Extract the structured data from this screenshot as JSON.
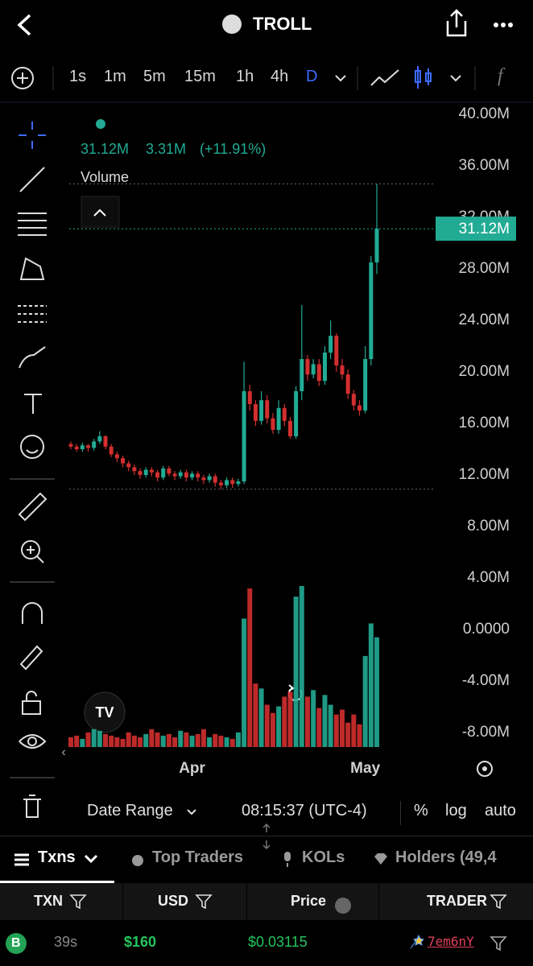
{
  "header": {
    "title": "TROLL"
  },
  "timeframes": [
    "1s",
    "1m",
    "5m",
    "15m",
    "1h",
    "4h",
    "D"
  ],
  "chart_data": {
    "type": "candlestick",
    "indicator": "Volume",
    "legend": {
      "close": "31.12M",
      "change": "3.31M",
      "change_pct": "(+11.91%)"
    },
    "categories": [
      null,
      null,
      null,
      null,
      null,
      null,
      null,
      null,
      null,
      null,
      null,
      null,
      null,
      null,
      null,
      null,
      null,
      null,
      null,
      null,
      null,
      "Apr",
      null,
      null,
      null,
      null,
      null,
      null,
      null,
      null,
      null,
      null,
      null,
      null,
      null,
      null,
      null,
      null,
      null,
      null,
      null,
      null,
      null,
      null,
      null,
      null,
      null,
      null,
      null,
      null,
      null,
      "May",
      null,
      null
    ],
    "open": [
      14.4,
      14.2,
      14.0,
      14.3,
      14.1,
      14.6,
      15.0,
      14.2,
      13.6,
      13.3,
      12.9,
      12.6,
      12.3,
      12.0,
      12.4,
      12.2,
      11.8,
      12.5,
      12.1,
      11.9,
      12.2,
      11.8,
      12.1,
      11.8,
      11.6,
      11.9,
      11.4,
      11.2,
      11.6,
      11.3,
      11.5,
      18.5,
      17.5,
      16.2,
      17.8,
      16.4,
      15.5,
      17.2,
      16.2,
      15.0,
      18.5,
      21.0,
      19.8,
      20.6,
      19.3,
      21.5,
      22.8,
      20.5,
      19.8,
      18.3,
      17.4,
      17.0,
      21.0,
      28.5
    ],
    "high": [
      14.6,
      14.4,
      14.5,
      14.4,
      14.8,
      15.4,
      15.1,
      14.4,
      13.8,
      13.5,
      13.1,
      12.8,
      12.5,
      12.6,
      12.6,
      12.4,
      12.7,
      12.7,
      12.3,
      12.4,
      12.4,
      12.3,
      12.3,
      12.0,
      12.1,
      12.1,
      11.6,
      11.8,
      11.8,
      11.7,
      20.8,
      19.0,
      17.8,
      18.5,
      18.2,
      16.8,
      17.8,
      17.5,
      16.5,
      18.9,
      25.2,
      21.3,
      21.0,
      21.0,
      22.0,
      24.0,
      23.0,
      21.0,
      20.2,
      18.6,
      17.8,
      22.0,
      29.0,
      34.6
    ],
    "low": [
      14.0,
      13.8,
      13.8,
      13.8,
      13.9,
      14.4,
      14.0,
      13.4,
      13.0,
      12.6,
      12.3,
      12.0,
      11.7,
      11.8,
      11.9,
      11.5,
      11.6,
      11.9,
      11.6,
      11.7,
      11.5,
      11.6,
      11.5,
      11.3,
      11.4,
      11.1,
      10.9,
      11.0,
      11.0,
      11.1,
      11.3,
      17.0,
      15.8,
      15.9,
      16.0,
      15.2,
      15.2,
      15.8,
      14.8,
      14.8,
      17.8,
      19.3,
      19.5,
      18.9,
      19.0,
      21.0,
      20.0,
      19.4,
      17.9,
      17.0,
      16.6,
      16.8,
      20.5,
      27.6
    ],
    "close": [
      14.2,
      14.0,
      14.3,
      14.1,
      14.6,
      15.0,
      14.2,
      13.6,
      13.3,
      12.9,
      12.6,
      12.3,
      12.0,
      12.4,
      12.2,
      11.8,
      12.5,
      12.1,
      11.9,
      12.2,
      11.8,
      12.1,
      11.8,
      11.6,
      11.9,
      11.4,
      11.2,
      11.6,
      11.3,
      11.5,
      18.5,
      17.5,
      16.2,
      17.8,
      16.4,
      15.5,
      17.2,
      16.2,
      15.0,
      18.5,
      21.0,
      19.8,
      20.6,
      19.3,
      21.5,
      22.8,
      20.5,
      19.8,
      18.3,
      17.4,
      17.0,
      21.0,
      28.5,
      31.12
    ],
    "volume": [
      12,
      14,
      10,
      18,
      22,
      20,
      16,
      14,
      12,
      10,
      18,
      14,
      12,
      16,
      22,
      18,
      14,
      16,
      12,
      20,
      18,
      14,
      16,
      22,
      12,
      16,
      14,
      12,
      10,
      18,
      158,
      195,
      78,
      72,
      52,
      42,
      50,
      62,
      68,
      185,
      198,
      62,
      70,
      48,
      64,
      52,
      40,
      46,
      30,
      40,
      28,
      112,
      152,
      135
    ],
    "up_color": "#22ab94",
    "down_color": "#d32f2f",
    "ylim": [
      -9,
      41
    ],
    "yticks": [
      {
        "value": 40,
        "label": "40.00M"
      },
      {
        "value": 36,
        "label": "36.00M"
      },
      {
        "value": 32,
        "label": "32.00M"
      },
      {
        "value": 28,
        "label": "28.00M"
      },
      {
        "value": 24,
        "label": "24.00M"
      },
      {
        "value": 20,
        "label": "20.00M"
      },
      {
        "value": 16,
        "label": "16.00M"
      },
      {
        "value": 12,
        "label": "12.00M"
      },
      {
        "value": 8,
        "label": "8.00M"
      },
      {
        "value": 4,
        "label": "4.00M"
      },
      {
        "value": 0,
        "label": "0.0000"
      },
      {
        "value": -4,
        "label": "-4.00M"
      },
      {
        "value": -8,
        "label": "-8.00M"
      }
    ],
    "log_scale": false,
    "grid": false
  },
  "bottom_bar": {
    "date_range": "Date Range",
    "time": "08:15:37 (UTC-4)",
    "percent": "%",
    "log": "log",
    "auto": "auto"
  },
  "tabs": [
    "Txns",
    "Top Traders",
    "KOLs",
    "Holders (49,4"
  ],
  "table": {
    "columns": [
      "TXN",
      "USD",
      "Price",
      "TRADER"
    ],
    "rows": [
      [
        "B",
        "39s",
        "$160",
        "$0.03115",
        "7em6nY"
      ]
    ]
  }
}
